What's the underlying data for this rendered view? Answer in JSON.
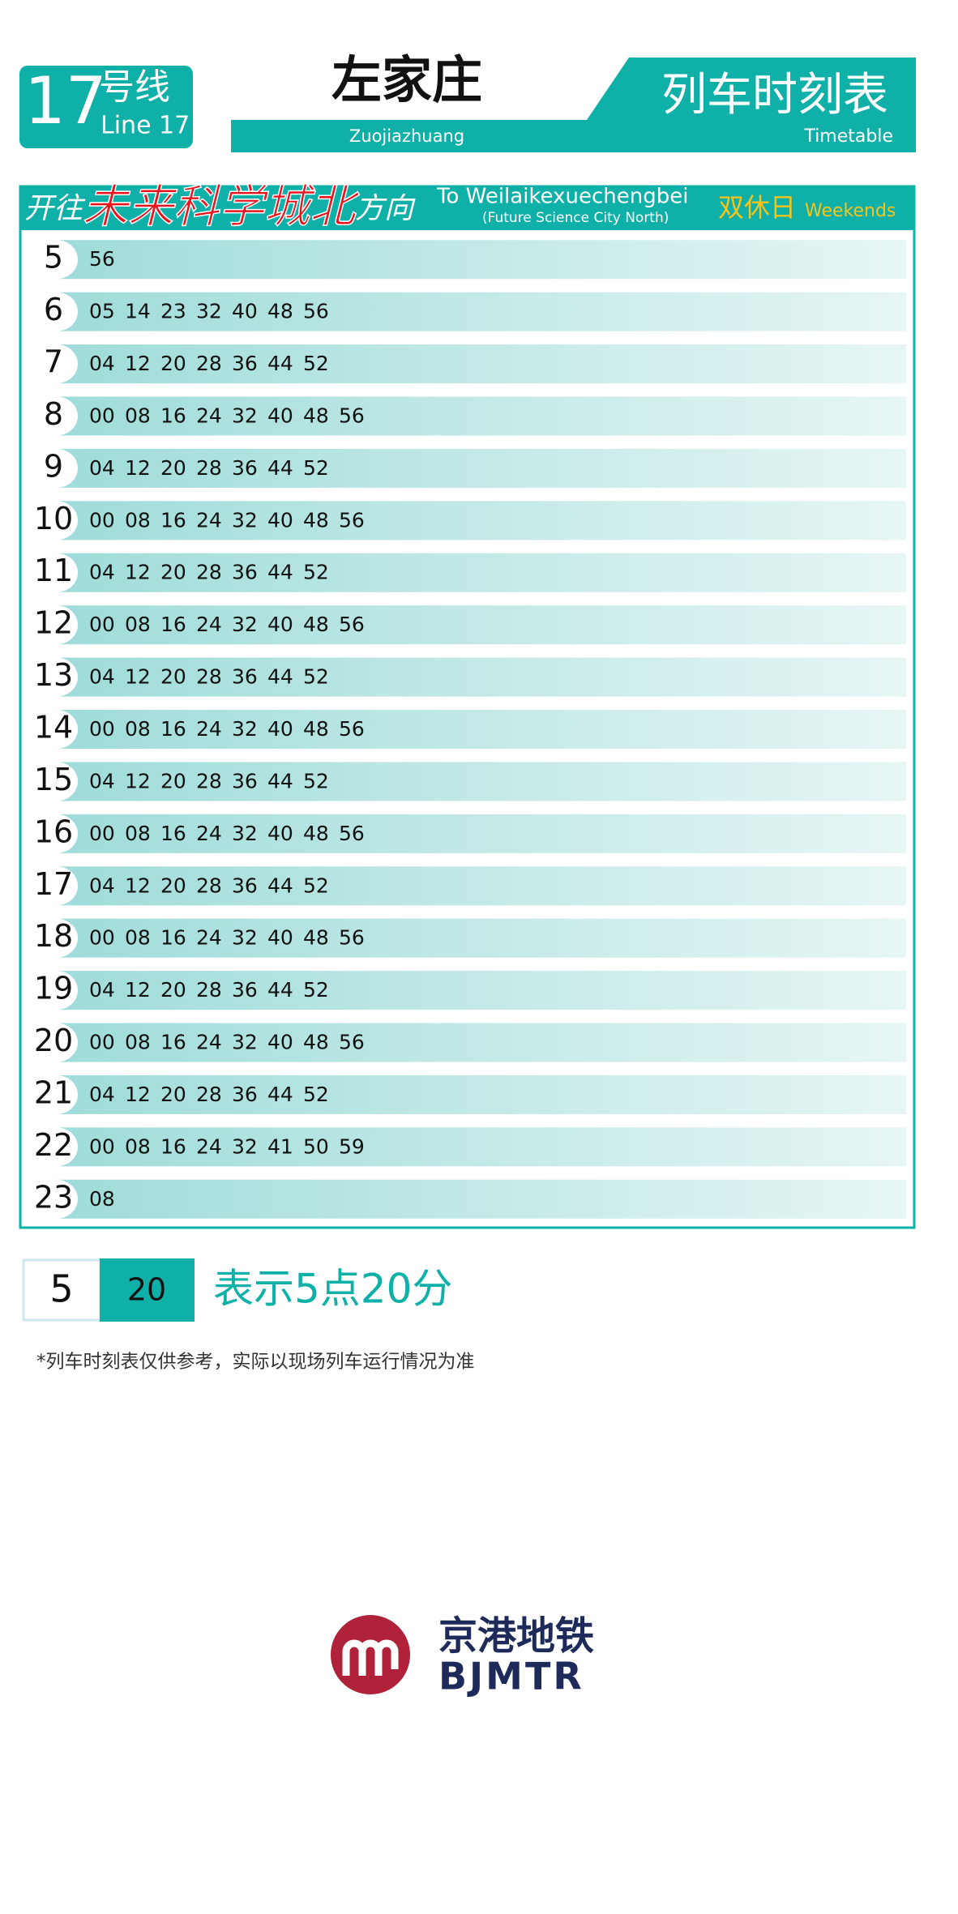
{
  "header": {
    "line_number": "17",
    "line_cn": "号线",
    "line_en": "Line 17",
    "station_cn": "左家庄",
    "station_en": "Zuojiazhuang",
    "title_cn": "列车时刻表",
    "title_en": "Timetable"
  },
  "direction": {
    "prefix": "开往",
    "destination": "未来科学城北",
    "suffix": "方向",
    "en": "To Weilaikexuechengbei",
    "en_sub": "(Future Science City North)",
    "day_cn": "双休日",
    "day_en": "Weekends"
  },
  "rows": [
    {
      "hour": "5",
      "minutes": [
        "56"
      ]
    },
    {
      "hour": "6",
      "minutes": [
        "05",
        "14",
        "23",
        "32",
        "40",
        "48",
        "56"
      ]
    },
    {
      "hour": "7",
      "minutes": [
        "04",
        "12",
        "20",
        "28",
        "36",
        "44",
        "52"
      ]
    },
    {
      "hour": "8",
      "minutes": [
        "00",
        "08",
        "16",
        "24",
        "32",
        "40",
        "48",
        "56"
      ]
    },
    {
      "hour": "9",
      "minutes": [
        "04",
        "12",
        "20",
        "28",
        "36",
        "44",
        "52"
      ]
    },
    {
      "hour": "10",
      "minutes": [
        "00",
        "08",
        "16",
        "24",
        "32",
        "40",
        "48",
        "56"
      ]
    },
    {
      "hour": "11",
      "minutes": [
        "04",
        "12",
        "20",
        "28",
        "36",
        "44",
        "52"
      ]
    },
    {
      "hour": "12",
      "minutes": [
        "00",
        "08",
        "16",
        "24",
        "32",
        "40",
        "48",
        "56"
      ]
    },
    {
      "hour": "13",
      "minutes": [
        "04",
        "12",
        "20",
        "28",
        "36",
        "44",
        "52"
      ]
    },
    {
      "hour": "14",
      "minutes": [
        "00",
        "08",
        "16",
        "24",
        "32",
        "40",
        "48",
        "56"
      ]
    },
    {
      "hour": "15",
      "minutes": [
        "04",
        "12",
        "20",
        "28",
        "36",
        "44",
        "52"
      ]
    },
    {
      "hour": "16",
      "minutes": [
        "00",
        "08",
        "16",
        "24",
        "32",
        "40",
        "48",
        "56"
      ]
    },
    {
      "hour": "17",
      "minutes": [
        "04",
        "12",
        "20",
        "28",
        "36",
        "44",
        "52"
      ]
    },
    {
      "hour": "18",
      "minutes": [
        "00",
        "08",
        "16",
        "24",
        "32",
        "40",
        "48",
        "56"
      ]
    },
    {
      "hour": "19",
      "minutes": [
        "04",
        "12",
        "20",
        "28",
        "36",
        "44",
        "52"
      ]
    },
    {
      "hour": "20",
      "minutes": [
        "00",
        "08",
        "16",
        "24",
        "32",
        "40",
        "48",
        "56"
      ]
    },
    {
      "hour": "21",
      "minutes": [
        "04",
        "12",
        "20",
        "28",
        "36",
        "44",
        "52"
      ]
    },
    {
      "hour": "22",
      "minutes": [
        "00",
        "08",
        "16",
        "24",
        "32",
        "41",
        "50",
        "59"
      ]
    },
    {
      "hour": "23",
      "minutes": [
        "08"
      ]
    }
  ],
  "legend": {
    "hour": "5",
    "minute": "20",
    "text": "表示5点20分"
  },
  "note": "*列车时刻表仅供参考，实际以现场列车运行情况为准",
  "logo": {
    "cn": "京港地铁",
    "en": "BJMTR"
  }
}
